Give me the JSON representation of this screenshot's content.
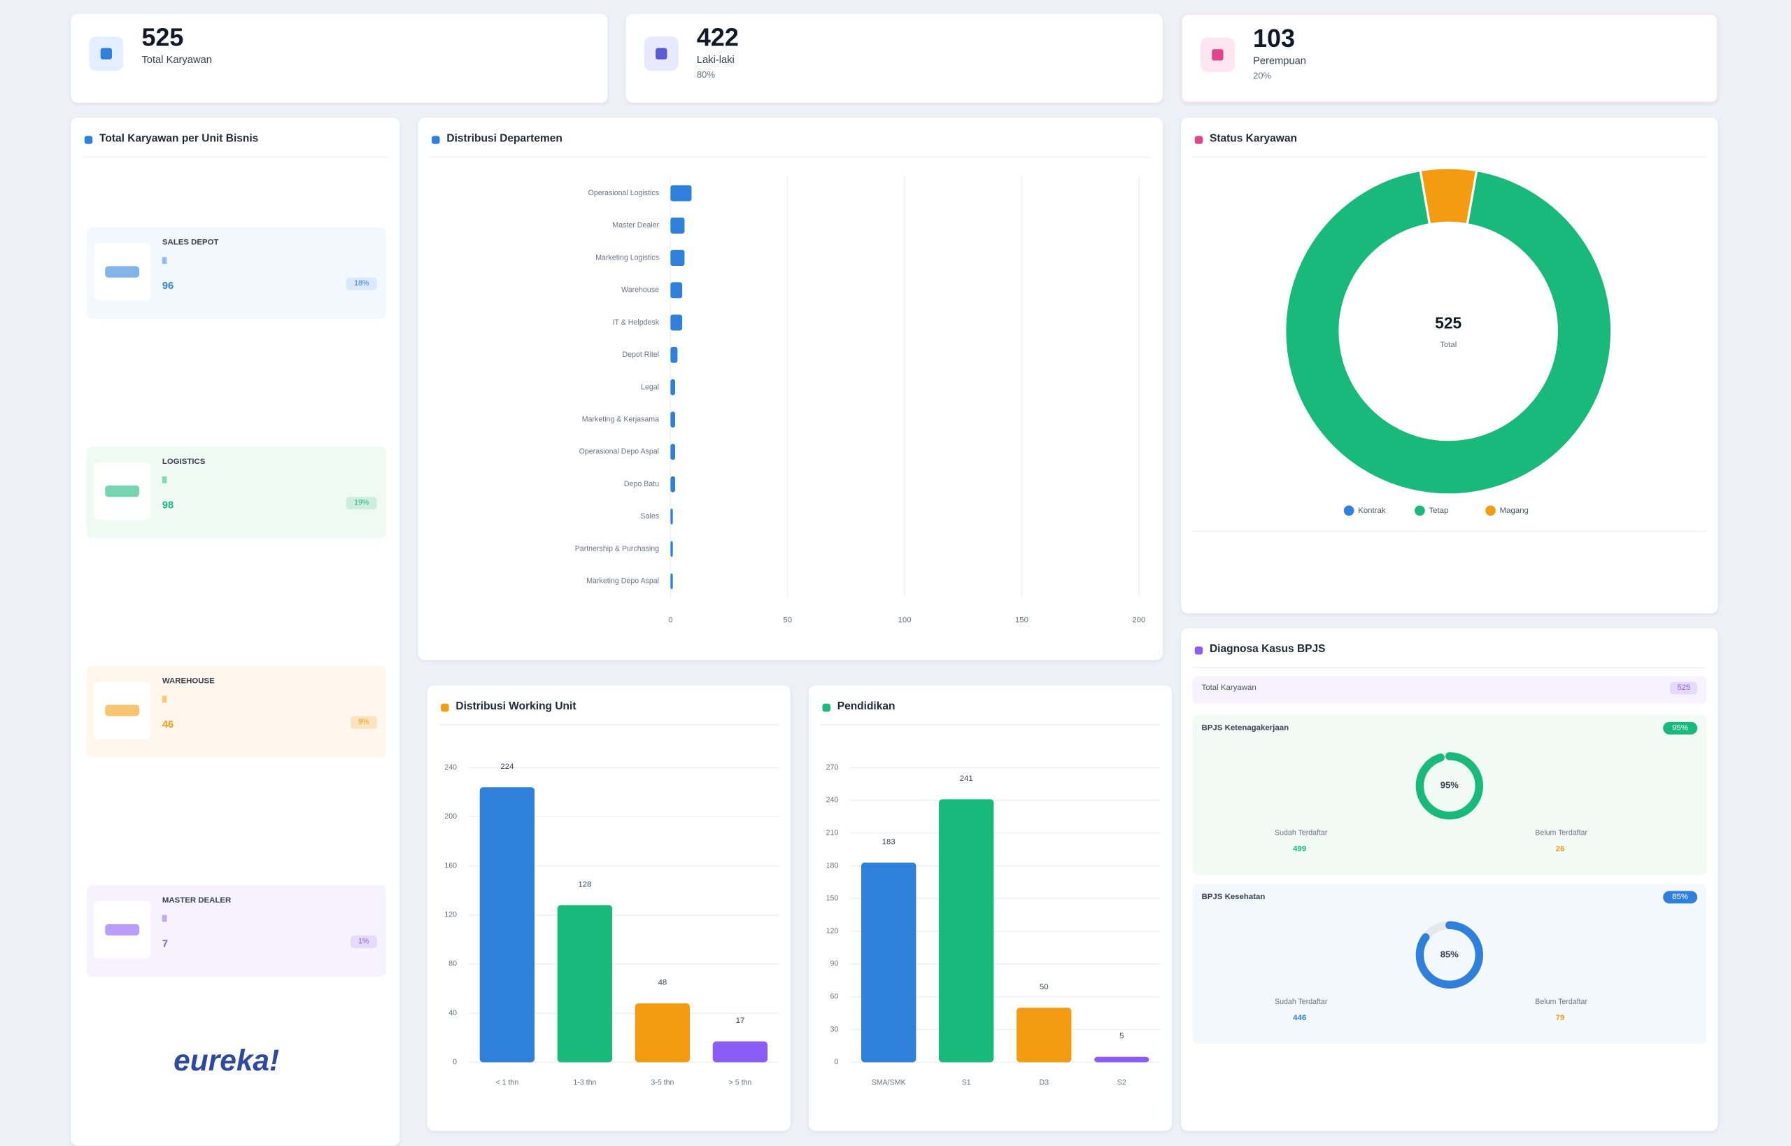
{
  "stats": [
    {
      "value": "525",
      "label": "Total Karyawan"
    },
    {
      "value": "422",
      "label": "Laki-laki",
      "note": "80%"
    },
    {
      "value": "103",
      "label": "Perempuan",
      "note": "20%"
    }
  ],
  "business_units": {
    "title": "Total Karyawan per Unit Bisnis",
    "units": [
      {
        "name": "SALES DEPOT",
        "count": "96",
        "badge": "18%"
      },
      {
        "name": "LOGISTICS",
        "count": "98",
        "badge": "19%"
      },
      {
        "name": "WAREHOUSE",
        "count": "46",
        "badge": "9%"
      },
      {
        "name": "MASTER DEALER",
        "count": "7",
        "badge": "1%"
      }
    ],
    "footer_logo": "eureka!"
  },
  "chart_data": [
    {
      "type": "hbar",
      "title": "Distribusi Departemen",
      "categories": [
        "Operasional Logistics",
        "Master Dealer",
        "Marketing Logistics",
        "Warehouse",
        "IT & Helpdesk",
        "Depot Ritel",
        "Legal",
        "Marketing & Kerjasama",
        "Operasional Depo Aspal",
        "Depo Batu",
        "Sales",
        "Partnership & Purchasing",
        "Marketing Depo Aspal"
      ],
      "values": [
        9,
        6,
        6,
        5,
        5,
        3,
        2,
        2,
        2,
        2,
        1,
        1,
        1
      ],
      "color": "#2f80db",
      "xlim": [
        0,
        200
      ],
      "xticks": [
        0,
        50,
        100,
        150,
        200
      ],
      "grid": true
    },
    {
      "type": "donut",
      "title": "Status Karyawan",
      "categories": [
        "Kontrak",
        "Tetap",
        "Magang"
      ],
      "values": [
        0,
        496,
        29
      ],
      "colors": [
        "#2f80db",
        "#18b97b",
        "#f39c12"
      ],
      "center_value": "525",
      "center_label": "Total"
    },
    {
      "type": "bar",
      "title": "Distribusi Working Unit",
      "categories": [
        "< 1 thn",
        "1-3 thn",
        "3-5 thn",
        "> 5 thn"
      ],
      "values": [
        224,
        128,
        48,
        17
      ],
      "colors": [
        "#2f80db",
        "#18b97b",
        "#f39c12",
        "#8b5cf6"
      ],
      "ylim": [
        0,
        240
      ],
      "yticks": [
        0,
        40,
        80,
        120,
        160,
        200,
        240
      ],
      "grid": true
    },
    {
      "type": "bar",
      "title": "Pendidikan",
      "categories": [
        "SMA/SMK",
        "S1",
        "D3",
        "S2"
      ],
      "values": [
        183,
        241,
        50,
        5
      ],
      "colors": [
        "#2f80db",
        "#18b97b",
        "#f39c12",
        "#8b5cf6"
      ],
      "ylim": [
        0,
        270
      ],
      "yticks": [
        0,
        30,
        60,
        90,
        120,
        150,
        180,
        210,
        240,
        270
      ],
      "grid": true
    }
  ],
  "bpjs": {
    "title": "Diagnosa Kasus BPJS",
    "total_label": "Total Karyawan",
    "total_value": "525",
    "blocks": [
      {
        "name": "BPJS Ketenagakerjaan",
        "badge": "95%",
        "percent": 95,
        "percent_label": "95%",
        "left_label": "Sudah Terdaftar",
        "left_value": "499",
        "right_label": "Belum Terdaftar",
        "right_value": "26",
        "color": "#18b97b"
      },
      {
        "name": "BPJS Kesehatan",
        "badge": "85%",
        "percent": 85,
        "percent_label": "85%",
        "left_label": "Sudah Terdaftar",
        "left_value": "446",
        "right_label": "Belum Terdaftar",
        "right_value": "79",
        "color": "#2f80db"
      }
    ]
  }
}
